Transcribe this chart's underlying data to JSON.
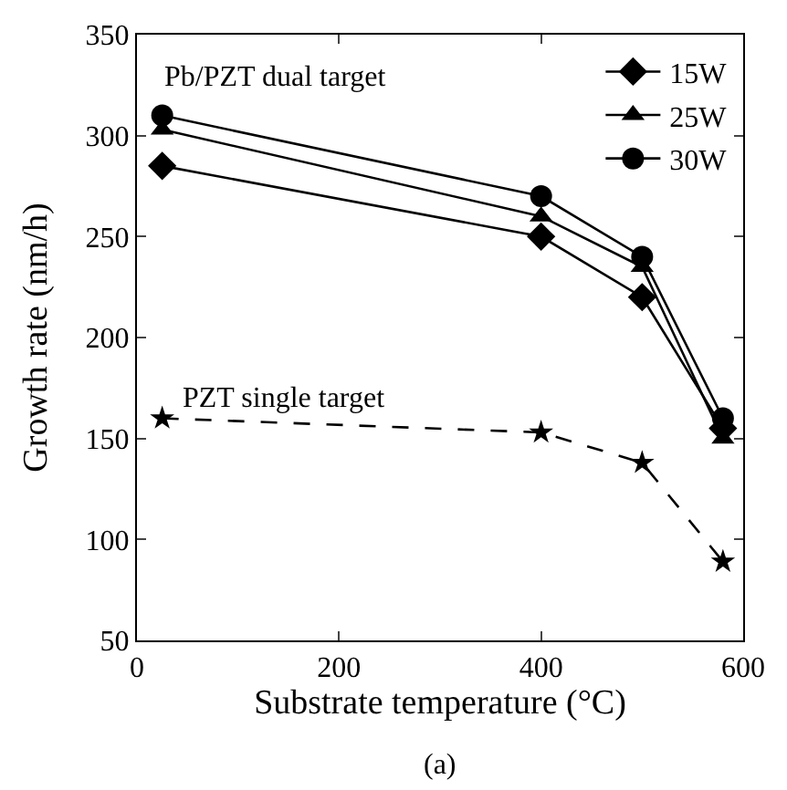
{
  "chart_data": {
    "type": "line",
    "xlabel": "Substrate temperature (°C)",
    "ylabel": "Growth rate (nm/h)",
    "x": [
      25,
      400,
      500,
      580
    ],
    "xlim": [
      0,
      600
    ],
    "xticks": [
      0,
      200,
      400,
      600
    ],
    "ylim": [
      50,
      350
    ],
    "yticks": [
      50,
      100,
      150,
      200,
      250,
      300,
      350
    ],
    "series": [
      {
        "name": "15W",
        "color": "#000000",
        "marker": "diamond",
        "line_style": "solid",
        "values": [
          285,
          250,
          220,
          155
        ]
      },
      {
        "name": "25W",
        "color": "#000000",
        "marker": "triangle",
        "line_style": "solid",
        "values": [
          303,
          260,
          235,
          150
        ]
      },
      {
        "name": "30W",
        "color": "#000000",
        "marker": "circle",
        "line_style": "solid",
        "values": [
          310,
          270,
          240,
          160
        ]
      },
      {
        "color": "#000000",
        "marker": "star",
        "line_style": "dashed",
        "values": [
          160,
          153,
          138,
          89
        ]
      }
    ],
    "annotations": [
      "Pb/PZT dual target",
      "PZT single target",
      "(a)"
    ],
    "grid": false,
    "legend": "top right"
  }
}
